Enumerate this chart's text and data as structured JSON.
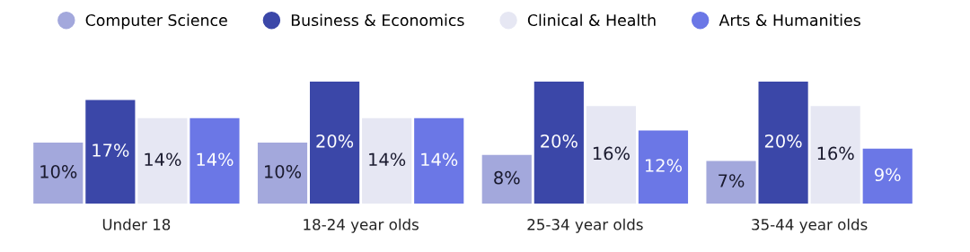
{
  "chart_data": {
    "type": "bar",
    "categories": [
      "Under 18",
      "18-24 year olds",
      "25-34 year olds",
      "35-44 year olds"
    ],
    "legend": "top",
    "grid": false,
    "series": [
      {
        "name": "Computer Science",
        "color": "#a3a8dc",
        "values": [
          10,
          10,
          8,
          7
        ],
        "value_labels": [
          "10%",
          "10%",
          "8%",
          "7%"
        ]
      },
      {
        "name": "Business & Economics",
        "color": "#3b47a8",
        "values": [
          17,
          20,
          20,
          20
        ],
        "value_labels": [
          "17%",
          "20%",
          "20%",
          "20%"
        ]
      },
      {
        "name": "Clinical & Health",
        "color": "#e6e7f3",
        "values": [
          14,
          14,
          16,
          16
        ],
        "value_labels": [
          "14%",
          "14%",
          "16%",
          "16%"
        ]
      },
      {
        "name": "Arts & Humanities",
        "color": "#6b77e6",
        "values": [
          14,
          14,
          12,
          9
        ],
        "value_labels": [
          "14%",
          "14%",
          "12%",
          "9%"
        ]
      }
    ]
  }
}
